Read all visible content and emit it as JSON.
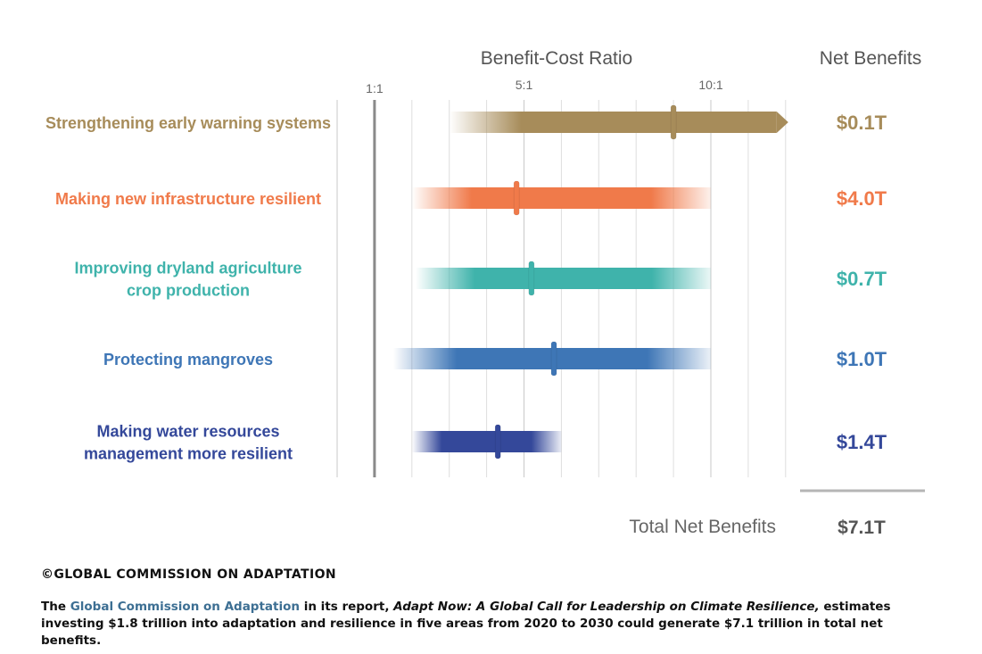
{
  "chart_data": {
    "type": "range-bar",
    "x_axis_title": "Benefit-Cost Ratio",
    "right_column_title": "Net Benefits",
    "x_ticks": [
      {
        "label": "1:1",
        "value": 1
      },
      {
        "label": "5:1",
        "value": 5
      },
      {
        "label": "10:1",
        "value": 10
      }
    ],
    "xlim": [
      0,
      12
    ],
    "grid": true,
    "rows": [
      {
        "label_lines": [
          "Strengthening early warning systems"
        ],
        "color": "#a78c5a",
        "range": [
          3,
          12
        ],
        "median": 9,
        "arrow": true,
        "net_benefit": "$0.1T"
      },
      {
        "label_lines": [
          "Making new infrastructure resilient"
        ],
        "color": "#f07a4a",
        "range": [
          2,
          10
        ],
        "median": 4.8,
        "arrow": false,
        "net_benefit": "$4.0T"
      },
      {
        "label_lines": [
          "Improving dryland agriculture",
          "crop production"
        ],
        "color": "#3fb3ab",
        "range": [
          2.1,
          10
        ],
        "median": 5.2,
        "arrow": false,
        "net_benefit": "$0.7T"
      },
      {
        "label_lines": [
          "Protecting mangroves"
        ],
        "color": "#3e76b6",
        "range": [
          1.5,
          10
        ],
        "median": 5.8,
        "arrow": false,
        "net_benefit": "$1.0T"
      },
      {
        "label_lines": [
          "Making water resources",
          "management more resilient"
        ],
        "color": "#34489a",
        "range": [
          2,
          6
        ],
        "median": 4.3,
        "arrow": false,
        "net_benefit": "$1.4T"
      }
    ],
    "total_label": "Total Net Benefits",
    "total_value": "$7.1T"
  },
  "credit": "©GLOBAL COMMISSION ON ADAPTATION",
  "caption": {
    "prefix": "The ",
    "org": "Global Commission on Adaptation",
    "mid": " in its report, ",
    "report": "Adapt Now: A Global Call for Leadership on Climate Resilience,",
    "suffix": " estimates investing $1.8 trillion into adaptation and resilience in five areas from 2020 to 2030 could generate $7.1 trillion in total net benefits."
  }
}
